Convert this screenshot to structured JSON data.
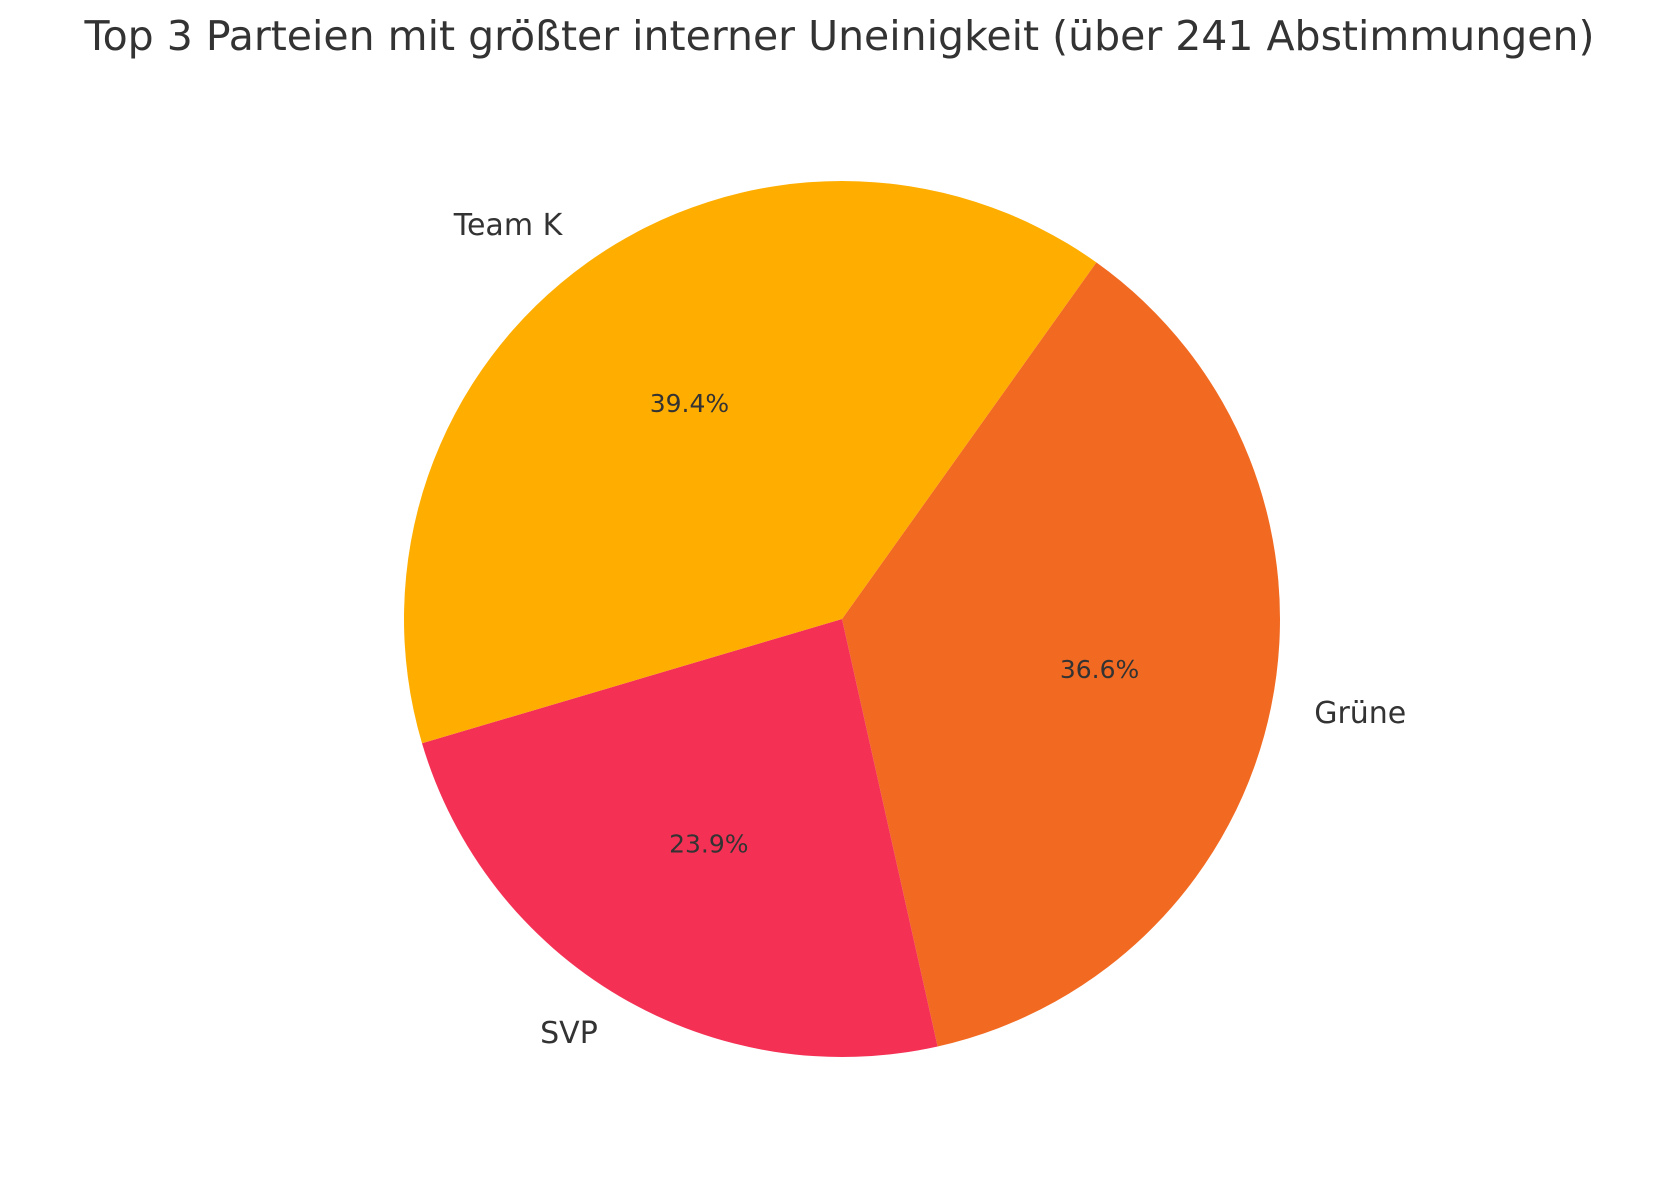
{
  "chart_data": {
    "type": "pie",
    "title": "Top 3 Parteien mit größter interner Uneinigkeit (über 241 Abstimmungen)",
    "slices": [
      {
        "label": "Grüne",
        "value": 36.6,
        "pct_label": "36.6%",
        "color": "#F26A21"
      },
      {
        "label": "SVP",
        "value": 23.9,
        "pct_label": "23.9%",
        "color": "#F43155"
      },
      {
        "label": "Team K",
        "value": 39.4,
        "pct_label": "39.4%",
        "color": "#FFAE00"
      }
    ],
    "start_angle_deg": -54.5,
    "direction": "clockwise",
    "legend": "none"
  }
}
